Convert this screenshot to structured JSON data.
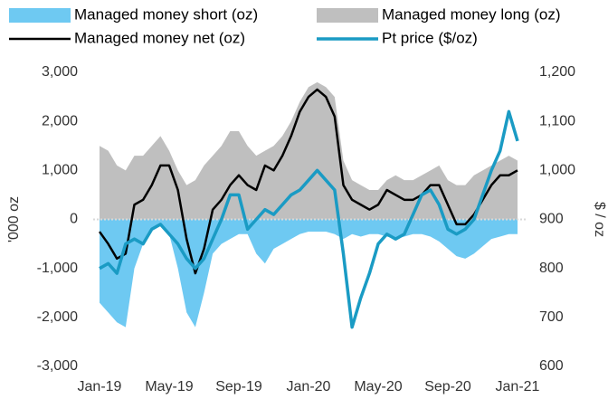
{
  "chart_data": {
    "type": "line",
    "categories": [
      "Jan-19",
      null,
      null,
      null,
      null,
      null,
      null,
      null,
      "May-19",
      null,
      null,
      null,
      null,
      null,
      null,
      null,
      "Sep-19",
      null,
      null,
      null,
      null,
      null,
      null,
      null,
      "Jan-20",
      null,
      null,
      null,
      null,
      null,
      null,
      null,
      "May-20",
      null,
      null,
      null,
      null,
      null,
      null,
      null,
      "Sep-20",
      null,
      null,
      null,
      null,
      null,
      null,
      null,
      "Jan-21"
    ],
    "series": [
      {
        "name": "Managed money short (oz)",
        "type": "area",
        "color": "#6ec9f2",
        "values": [
          -1700,
          -1900,
          -2100,
          -2200,
          -1000,
          -500,
          -200,
          -100,
          -300,
          -1000,
          -1900,
          -2200,
          -1500,
          -700,
          -500,
          -400,
          -300,
          -300,
          -700,
          -900,
          -600,
          -500,
          -400,
          -300,
          -250,
          -250,
          -250,
          -300,
          -400,
          -300,
          -350,
          -300,
          -300,
          -350,
          -400,
          -350,
          -300,
          -300,
          -350,
          -450,
          -600,
          -750,
          -800,
          -700,
          -550,
          -400,
          -350,
          -300,
          -300
        ]
      },
      {
        "name": "Managed money long (oz)",
        "type": "area",
        "color": "#bfbfbf",
        "values": [
          1500,
          1400,
          1100,
          1000,
          1300,
          1300,
          1500,
          1700,
          1400,
          1000,
          700,
          800,
          1100,
          1300,
          1500,
          1800,
          1800,
          1500,
          1300,
          1400,
          1500,
          1700,
          2000,
          2400,
          2700,
          2800,
          2700,
          2500,
          1200,
          800,
          700,
          600,
          600,
          800,
          900,
          800,
          800,
          900,
          1000,
          1100,
          800,
          700,
          700,
          900,
          1000,
          1100,
          1200,
          1300,
          1200
        ]
      },
      {
        "name": "Managed money net (oz)",
        "type": "line",
        "color": "#000000",
        "values": [
          -250,
          -500,
          -800,
          -700,
          300,
          400,
          700,
          1100,
          1100,
          600,
          -400,
          -1100,
          -600,
          200,
          400,
          700,
          900,
          700,
          600,
          1100,
          1000,
          1300,
          1700,
          2200,
          2500,
          2650,
          2500,
          2100,
          700,
          400,
          300,
          200,
          300,
          600,
          500,
          400,
          400,
          500,
          700,
          700,
          300,
          -100,
          -100,
          100,
          400,
          700,
          900,
          900,
          1000
        ]
      },
      {
        "name": "Pt price ($/oz)",
        "type": "line",
        "axis": "y2",
        "color": "#1a9bc4",
        "values": [
          800,
          810,
          790,
          850,
          860,
          850,
          880,
          890,
          870,
          850,
          820,
          800,
          820,
          860,
          900,
          950,
          950,
          880,
          900,
          920,
          910,
          930,
          950,
          960,
          980,
          1000,
          980,
          960,
          830,
          680,
          740,
          790,
          850,
          870,
          860,
          870,
          910,
          950,
          960,
          930,
          880,
          870,
          880,
          900,
          950,
          1000,
          1040,
          1120,
          1060
        ]
      }
    ],
    "ylabel": "'000 oz",
    "y2label": "$ / oz",
    "ylim": [
      -3000,
      3000
    ],
    "yticks": [
      {
        "value": -3000,
        "label": "-3,000"
      },
      {
        "value": -2000,
        "label": "-2,000"
      },
      {
        "value": -1000,
        "label": "-1,000"
      },
      0,
      {
        "value": 1000,
        "label": "1,000"
      },
      {
        "value": 2000,
        "label": "2,000"
      },
      {
        "value": 3000,
        "label": "3,000"
      }
    ],
    "y2lim": [
      600,
      1200
    ],
    "y2ticks": [
      600,
      700,
      800,
      900,
      {
        "value": 1000,
        "label": "1,000"
      },
      {
        "value": 1100,
        "label": "1,100"
      },
      {
        "value": 1200,
        "label": "1,200"
      }
    ],
    "legend": "top"
  }
}
